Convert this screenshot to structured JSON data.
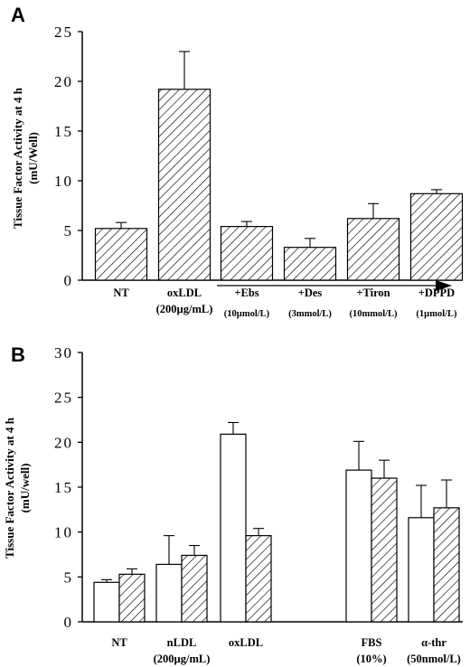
{
  "chart_data": [
    {
      "type": "bar",
      "panel": "A",
      "ylabel": [
        "Tissue Factor Activity at 4 h",
        "(mU/Well)"
      ],
      "ylim": [
        0,
        25
      ],
      "yticks": [
        "0",
        "5",
        "10",
        "15",
        "20",
        "25"
      ],
      "categories": [
        {
          "line1": "NT",
          "line2": ""
        },
        {
          "line1": "oxLDL",
          "line2": "(200µg/mL)"
        },
        {
          "line1": "+Ebs",
          "line2": "(10µmol/L)"
        },
        {
          "line1": "+Des",
          "line2": "(3mmol/L)"
        },
        {
          "line1": "+Tiron",
          "line2": "(10mmol/L)"
        },
        {
          "line1": "+DPPD",
          "line2": "(1µmol/L)"
        }
      ],
      "values": [
        5.2,
        19.2,
        5.4,
        3.3,
        6.2,
        8.7
      ],
      "errors": [
        0.6,
        3.8,
        0.5,
        0.9,
        1.5,
        0.4
      ],
      "fill": "hatched",
      "annotation": "arrow spanning +Ebs to +DPPD"
    },
    {
      "type": "bar",
      "panel": "B",
      "ylabel": [
        "Tissue Factor Activity at 4 h",
        "(mU/well)"
      ],
      "ylim": [
        0,
        30
      ],
      "yticks": [
        "0",
        "5",
        "10",
        "15",
        "20",
        "25",
        "30"
      ],
      "categories": [
        {
          "line1": "NT",
          "line2": ""
        },
        {
          "line1": "nLDL",
          "line2": "(200µg/mL)"
        },
        {
          "line1": "oxLDL",
          "line2": ""
        },
        {
          "line1": "FBS",
          "line2": "(10%)"
        },
        {
          "line1": "α-thr",
          "line2": "(50nmol/L)"
        }
      ],
      "series": [
        {
          "fill": "open",
          "values": [
            4.4,
            6.4,
            20.9,
            16.9,
            11.6
          ],
          "errors": [
            0.3,
            3.2,
            1.3,
            3.2,
            3.6
          ]
        },
        {
          "fill": "hatched",
          "values": [
            5.3,
            7.4,
            9.6,
            16.0,
            12.7
          ],
          "errors": [
            0.6,
            1.1,
            0.8,
            2.0,
            3.1
          ]
        }
      ]
    }
  ]
}
